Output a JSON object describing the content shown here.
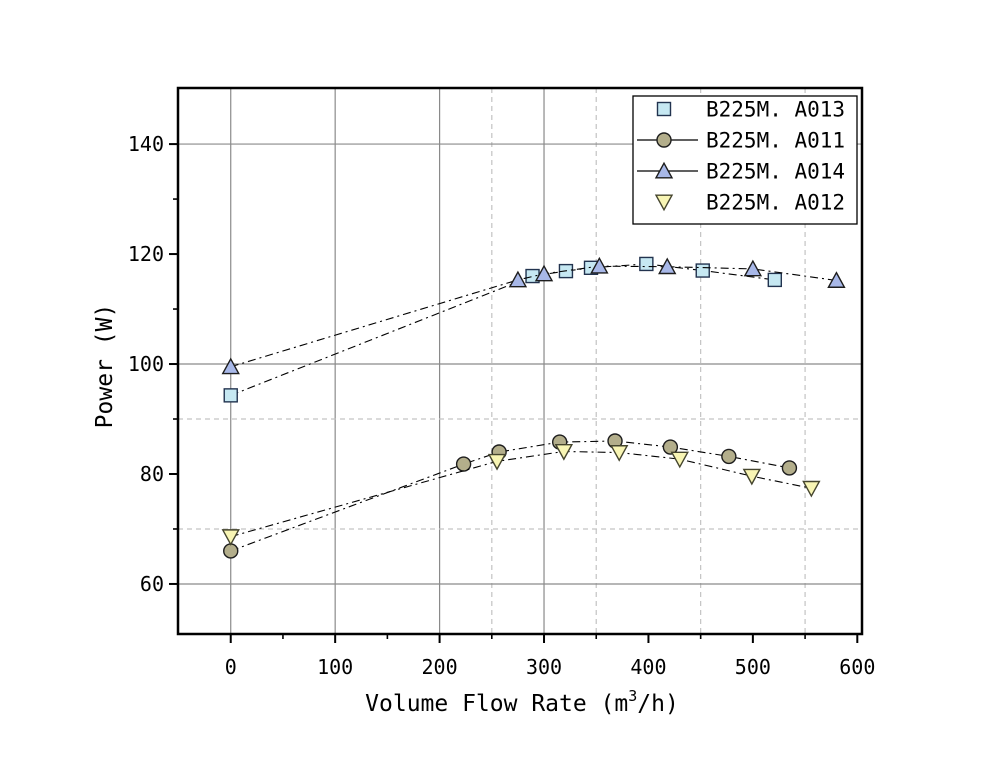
{
  "chart_data": {
    "type": "scatter",
    "title": "",
    "xlabel": "Volume Flow Rate (m³/h)",
    "xlabel_parts": {
      "prefix": "Volume Flow Rate (m",
      "sup": "3",
      "suffix": "/h)"
    },
    "ylabel": "Power (W)",
    "x_axis": {
      "min": -50.5,
      "max": 604.5,
      "major_ticks": [
        0,
        100,
        200,
        300,
        400,
        500,
        600
      ],
      "minor_ticks": [
        50,
        150,
        250,
        350,
        450,
        550
      ]
    },
    "y_axis": {
      "min": 50.9,
      "max": 150.2,
      "major_ticks": [
        60,
        80,
        100,
        120,
        140
      ],
      "minor_ticks": [
        70,
        90,
        110,
        130
      ]
    },
    "gridlines": {
      "v_solid": [
        0,
        100,
        200,
        300
      ],
      "v_dashed": [
        250,
        350,
        450,
        550
      ],
      "h_solid": [
        60,
        100,
        140
      ],
      "h_dashed": [
        70,
        90
      ]
    },
    "legend_position": "top-right",
    "series": [
      {
        "name": "B225M. A013",
        "marker": "square",
        "fill": "#c6e8f2",
        "stroke": "#22334f",
        "line_color": "#000000",
        "legend_line": false,
        "points": [
          [
            0,
            94.3
          ],
          [
            289,
            116.0
          ],
          [
            321,
            116.9
          ],
          [
            345,
            117.5
          ],
          [
            398,
            118.2
          ],
          [
            452,
            117.0
          ],
          [
            521,
            115.3
          ]
        ]
      },
      {
        "name": "B225M. A011",
        "marker": "circle",
        "fill": "#b3ae8b",
        "stroke": "#1d1d1d",
        "line_color": "#000000",
        "legend_line": true,
        "points": [
          [
            0,
            66.0
          ],
          [
            223,
            81.8
          ],
          [
            257,
            84.0
          ],
          [
            315,
            85.8
          ],
          [
            368,
            86.0
          ],
          [
            421,
            84.9
          ],
          [
            477,
            83.2
          ],
          [
            535,
            81.1
          ]
        ]
      },
      {
        "name": "B225M. A014",
        "marker": "triangle-up",
        "fill": "#a8b8e8",
        "stroke": "#1d1d1d",
        "line_color": "#000000",
        "legend_line": true,
        "points": [
          [
            0,
            99.5
          ],
          [
            275,
            115.3
          ],
          [
            300,
            116.4
          ],
          [
            353,
            117.8
          ],
          [
            418,
            117.7
          ],
          [
            500,
            117.3
          ],
          [
            580,
            115.2
          ]
        ]
      },
      {
        "name": "B225M. A012",
        "marker": "triangle-down",
        "fill": "#f8f5b4",
        "stroke": "#45452e",
        "line_color": "#000000",
        "legend_line": false,
        "points": [
          [
            0,
            68.6
          ],
          [
            255,
            82.3
          ],
          [
            319,
            84.1
          ],
          [
            372,
            83.9
          ],
          [
            430,
            82.7
          ],
          [
            499,
            79.6
          ],
          [
            556,
            77.4
          ]
        ]
      }
    ],
    "colors": {
      "grid_solid": "#8a8a8a",
      "grid_dashed": "#c3c3c3",
      "axis": "#000000",
      "legend_bg": "#ffffff",
      "legend_border": "#000000"
    }
  }
}
